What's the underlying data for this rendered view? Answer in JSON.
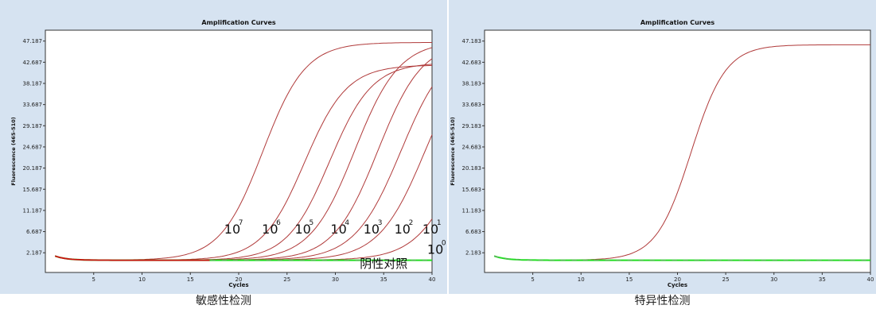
{
  "colors": {
    "panel_bg": "#d6e3f1",
    "plot_bg": "#ffffff",
    "curve": "#b03a3a",
    "negative": "#22dd22",
    "dark_red": "#cc1111"
  },
  "panels": [
    {
      "caption": "敏感性检测"
    },
    {
      "caption": "特异性检测"
    }
  ],
  "chart_data": [
    {
      "type": "line",
      "title": "Amplification Curves",
      "xlabel": "Cycles",
      "ylabel": "Fluorescence (465-510)",
      "xlim": [
        0,
        40
      ],
      "ylim": [
        -2,
        49.5
      ],
      "xticks": [
        5,
        10,
        15,
        20,
        25,
        30,
        35,
        40
      ],
      "xtick_labels": [
        "5",
        "10",
        "15",
        "20",
        "25",
        "30",
        "35",
        "40"
      ],
      "yticks": [
        2.187,
        6.687,
        11.187,
        15.687,
        20.187,
        24.687,
        29.187,
        33.687,
        38.187,
        42.687,
        47.187
      ],
      "ytick_labels": [
        "2.187",
        "6.687",
        "11.187",
        "15.687",
        "20.187",
        "24.687",
        "29.187",
        "33.687",
        "38.187",
        "42.687",
        "47.187"
      ],
      "grid": false,
      "series": [
        {
          "plateau": 46.3,
          "midpoint": 22.5,
          "slope": 2.2,
          "kind": "positive",
          "label_base": "10",
          "label_exp": "7",
          "label_at": [
            18.5,
            6.3
          ]
        },
        {
          "plateau": 41.5,
          "midpoint": 26.8,
          "slope": 2.2,
          "kind": "positive",
          "label_base": "10",
          "label_exp": "6",
          "label_at": [
            22.4,
            6.3
          ]
        },
        {
          "plateau": 42.0,
          "midpoint": 29.4,
          "slope": 2.2,
          "kind": "positive",
          "label_base": "10",
          "label_exp": "5",
          "label_at": [
            25.8,
            6.3
          ]
        },
        {
          "plateau": 46.6,
          "midpoint": 32.0,
          "slope": 2.3,
          "kind": "positive",
          "label_base": "10",
          "label_exp": "4",
          "label_at": [
            29.5,
            6.3
          ]
        },
        {
          "plateau": 46.6,
          "midpoint": 34.4,
          "slope": 2.3,
          "kind": "positive",
          "label_base": "10",
          "label_exp": "3",
          "label_at": [
            32.9,
            6.3
          ]
        },
        {
          "plateau": 46.6,
          "midpoint": 36.8,
          "slope": 2.4,
          "kind": "positive",
          "label_base": "10",
          "label_exp": "2",
          "label_at": [
            36.1,
            6.3
          ]
        },
        {
          "plateau": 46.6,
          "midpoint": 39.3,
          "slope": 2.4,
          "kind": "positive",
          "label_base": "10",
          "label_exp": "1",
          "label_at": [
            39.0,
            6.3
          ]
        },
        {
          "plateau": 46.6,
          "midpoint": 43.5,
          "slope": 2.4,
          "kind": "positive",
          "label_base": "10",
          "label_exp": "0",
          "label_at": [
            39.5,
            2.0
          ]
        },
        {
          "kind": "negative",
          "value": 0.6,
          "label": "阴性对照",
          "label_at": [
            35.0,
            -1.0
          ]
        }
      ]
    },
    {
      "type": "line",
      "title": "Amplification Curves",
      "xlabel": "Cycles",
      "ylabel": "Fluorescence (465-510)",
      "xlim": [
        0,
        40
      ],
      "ylim": [
        -2,
        49.5
      ],
      "xticks": [
        5,
        10,
        15,
        20,
        25,
        30,
        35,
        40
      ],
      "xtick_labels": [
        "5",
        "10",
        "15",
        "20",
        "25",
        "30",
        "35",
        "40"
      ],
      "yticks": [
        2.183,
        6.683,
        11.183,
        15.683,
        20.183,
        24.683,
        29.183,
        33.683,
        38.183,
        42.683,
        47.183
      ],
      "ytick_labels": [
        "2.183",
        "6.683",
        "11.183",
        "15.683",
        "20.183",
        "24.683",
        "29.183",
        "33.683",
        "38.183",
        "42.683",
        "47.183"
      ],
      "grid": false,
      "series": [
        {
          "plateau": 45.8,
          "midpoint": 21.4,
          "slope": 1.8,
          "kind": "positive"
        },
        {
          "kind": "negative",
          "value": 0.6
        }
      ]
    }
  ]
}
